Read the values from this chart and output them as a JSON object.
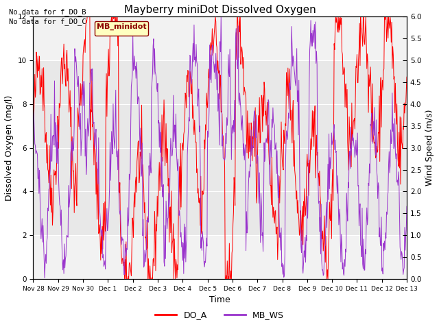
{
  "title": "Mayberry miniDot Dissolved Oxygen",
  "ylabel_left": "Dissolved Oxygen (mg/l)",
  "ylabel_right": "Wind Speed (m/s)",
  "xlabel": "Time",
  "ylim_left": [
    0,
    12
  ],
  "ylim_right": [
    0,
    6.0
  ],
  "no_data_text": [
    "No data for f_DO_B",
    "No data for f_DO_C"
  ],
  "legend_box_label": "MB_minidot",
  "legend_box_facecolor": "#FFFFC0",
  "legend_box_edgecolor": "#8B0000",
  "do_color": "#FF0000",
  "ws_color": "#9933CC",
  "shaded_band": [
    2.0,
    10.0
  ],
  "shaded_color": "#E8E8E8",
  "x_tick_labels": [
    "Nov 28",
    "Nov 29",
    "Nov 30",
    "Dec 1",
    "Dec 2",
    "Dec 3",
    "Dec 4",
    "Dec 5",
    "Dec 6",
    "Dec 7",
    "Dec 8",
    "Dec 9",
    "Dec 10",
    "Dec 11",
    "Dec 12",
    "Dec 13"
  ],
  "title_fontsize": 11,
  "axis_label_fontsize": 9,
  "tick_fontsize": 7.5
}
